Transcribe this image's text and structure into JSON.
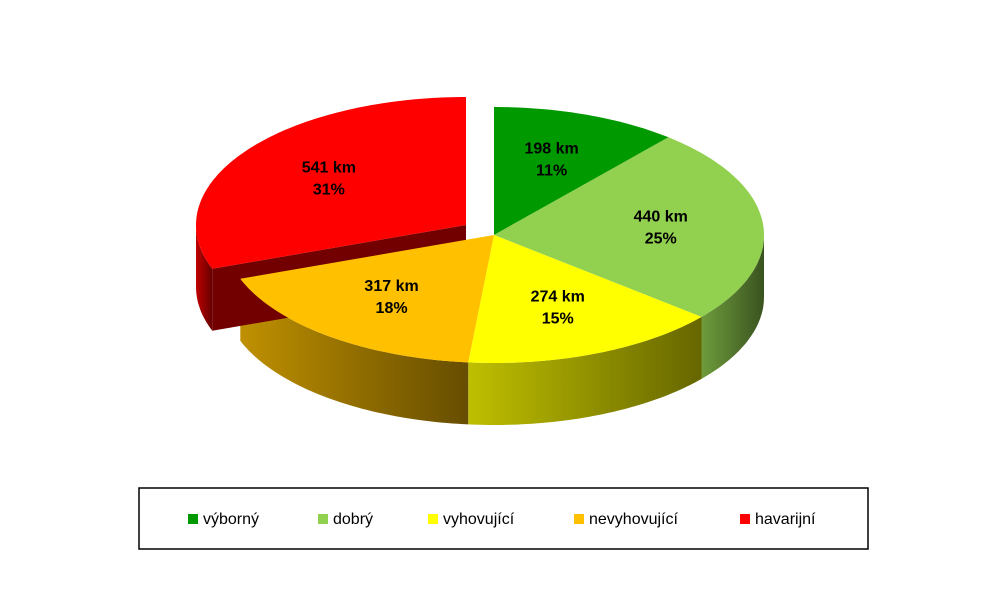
{
  "chart_data": {
    "type": "pie3d",
    "categories": [
      "výborný",
      "dobrý",
      "vyhovující",
      "nevyhovující",
      "havarijní"
    ],
    "values": [
      198,
      440,
      274,
      317,
      541
    ],
    "value_labels": [
      "198 km",
      "440 km",
      "274 km",
      "317 km",
      "541 km"
    ],
    "percent_labels": [
      "11%",
      "25%",
      "15%",
      "18%",
      "31%"
    ],
    "colors": [
      "#009900",
      "#92d050",
      "#ffff00",
      "#ffc000",
      "#ff0000"
    ],
    "exploded": [
      false,
      false,
      false,
      false,
      true
    ],
    "legend": "bottom"
  }
}
